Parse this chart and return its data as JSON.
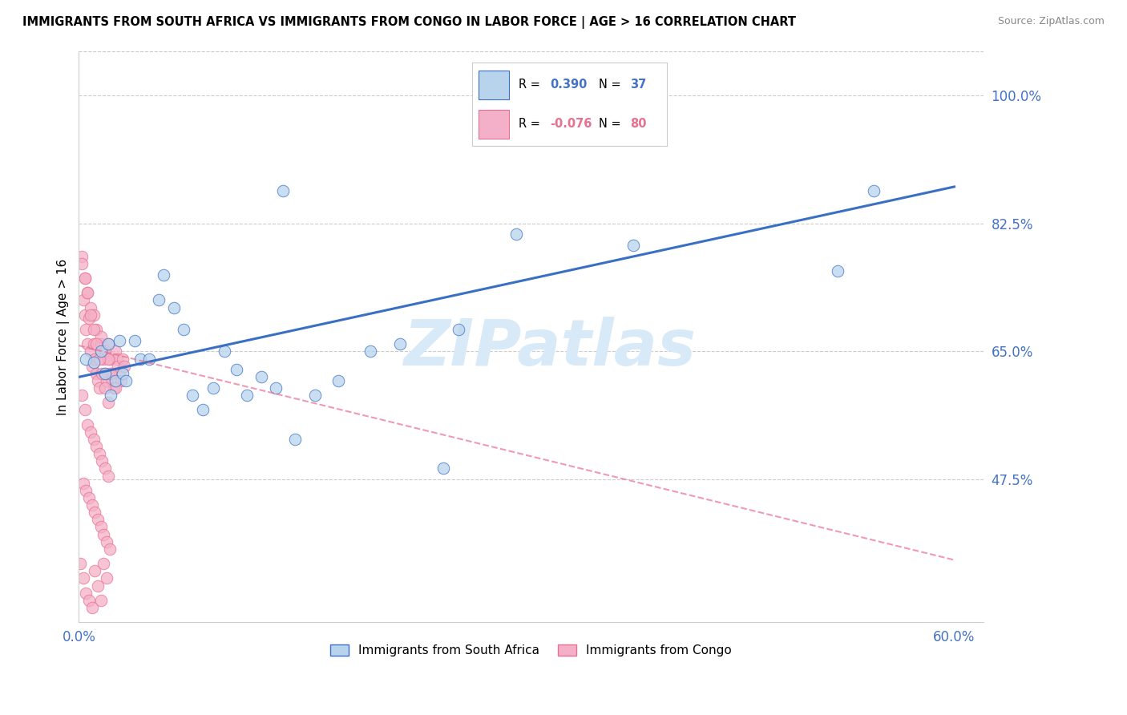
{
  "title": "IMMIGRANTS FROM SOUTH AFRICA VS IMMIGRANTS FROM CONGO IN LABOR FORCE | AGE > 16 CORRELATION CHART",
  "source": "Source: ZipAtlas.com",
  "ylabel": "In Labor Force | Age > 16",
  "xlim": [
    0.0,
    0.62
  ],
  "ylim": [
    0.28,
    1.06
  ],
  "yticks": [
    0.475,
    0.65,
    0.825,
    1.0
  ],
  "ytick_labels": [
    "47.5%",
    "65.0%",
    "82.5%",
    "100.0%"
  ],
  "xtick_positions": [
    0.0,
    0.1,
    0.2,
    0.3,
    0.4,
    0.5,
    0.6
  ],
  "xtick_labels": [
    "0.0%",
    "",
    "",
    "",
    "",
    "",
    "60.0%"
  ],
  "r_south_africa": 0.39,
  "n_south_africa": 37,
  "r_congo": -0.076,
  "n_congo": 80,
  "color_south_africa": "#b8d4ed",
  "color_congo": "#f4b0c8",
  "line_color_south_africa": "#3a6fc4",
  "line_color_congo": "#e87090",
  "background_color": "#ffffff",
  "grid_color": "#cccccc",
  "sa_line_x": [
    0.0,
    0.6
  ],
  "sa_line_y": [
    0.615,
    0.875
  ],
  "congo_line_x": [
    0.0,
    0.6
  ],
  "congo_line_y": [
    0.658,
    0.365
  ],
  "sa_x": [
    0.005,
    0.01,
    0.015,
    0.018,
    0.02,
    0.022,
    0.025,
    0.028,
    0.03,
    0.032,
    0.038,
    0.042,
    0.048,
    0.055,
    0.058,
    0.065,
    0.072,
    0.078,
    0.085,
    0.092,
    0.1,
    0.108,
    0.115,
    0.125,
    0.135,
    0.148,
    0.162,
    0.178,
    0.2,
    0.22,
    0.25,
    0.26,
    0.3,
    0.38,
    0.52,
    0.545,
    0.14
  ],
  "sa_y": [
    0.64,
    0.635,
    0.65,
    0.62,
    0.66,
    0.59,
    0.61,
    0.665,
    0.62,
    0.61,
    0.665,
    0.64,
    0.64,
    0.72,
    0.755,
    0.71,
    0.68,
    0.59,
    0.57,
    0.6,
    0.65,
    0.625,
    0.59,
    0.615,
    0.6,
    0.53,
    0.59,
    0.61,
    0.65,
    0.66,
    0.49,
    0.68,
    0.81,
    0.795,
    0.76,
    0.87,
    0.87
  ],
  "c_x": [
    0.002,
    0.003,
    0.004,
    0.005,
    0.006,
    0.007,
    0.008,
    0.009,
    0.01,
    0.011,
    0.012,
    0.013,
    0.014,
    0.015,
    0.016,
    0.017,
    0.018,
    0.019,
    0.02,
    0.021,
    0.022,
    0.023,
    0.024,
    0.025,
    0.026,
    0.027,
    0.028,
    0.029,
    0.03,
    0.031,
    0.004,
    0.006,
    0.008,
    0.01,
    0.012,
    0.015,
    0.018,
    0.02,
    0.022,
    0.025,
    0.002,
    0.004,
    0.006,
    0.008,
    0.01,
    0.012,
    0.014,
    0.016,
    0.018,
    0.02,
    0.003,
    0.005,
    0.007,
    0.009,
    0.011,
    0.013,
    0.015,
    0.017,
    0.019,
    0.021,
    0.002,
    0.004,
    0.006,
    0.008,
    0.01,
    0.012,
    0.014,
    0.016,
    0.018,
    0.02,
    0.001,
    0.003,
    0.005,
    0.007,
    0.009,
    0.011,
    0.013,
    0.015,
    0.017,
    0.019
  ],
  "c_y": [
    0.78,
    0.72,
    0.7,
    0.68,
    0.66,
    0.695,
    0.65,
    0.63,
    0.66,
    0.64,
    0.62,
    0.61,
    0.6,
    0.66,
    0.65,
    0.64,
    0.62,
    0.61,
    0.66,
    0.64,
    0.62,
    0.61,
    0.6,
    0.65,
    0.64,
    0.63,
    0.62,
    0.61,
    0.64,
    0.63,
    0.75,
    0.73,
    0.71,
    0.7,
    0.68,
    0.67,
    0.65,
    0.64,
    0.62,
    0.6,
    0.59,
    0.57,
    0.55,
    0.54,
    0.53,
    0.52,
    0.51,
    0.5,
    0.49,
    0.48,
    0.47,
    0.46,
    0.45,
    0.44,
    0.43,
    0.42,
    0.41,
    0.4,
    0.39,
    0.38,
    0.77,
    0.75,
    0.73,
    0.7,
    0.68,
    0.66,
    0.64,
    0.62,
    0.6,
    0.58,
    0.36,
    0.34,
    0.32,
    0.31,
    0.3,
    0.35,
    0.33,
    0.31,
    0.36,
    0.34
  ]
}
